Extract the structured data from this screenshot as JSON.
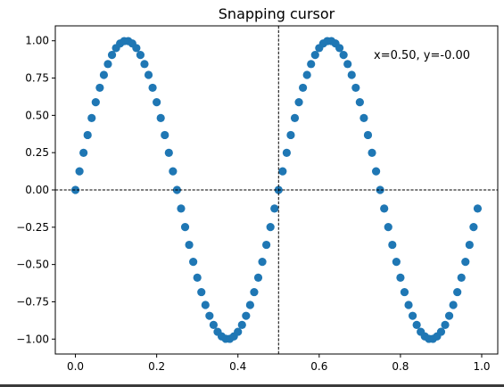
{
  "chart_data": {
    "type": "scatter",
    "title": "Snapping cursor",
    "xlabel": "",
    "ylabel": "",
    "xlim": [
      -0.0495,
      1.0395
    ],
    "ylim": [
      -1.1,
      1.1
    ],
    "xticks": [
      0.0,
      0.2,
      0.4,
      0.6,
      0.8,
      1.0
    ],
    "xtick_labels": [
      "0.0",
      "0.2",
      "0.4",
      "0.6",
      "0.8",
      "1.0"
    ],
    "yticks": [
      1.0,
      0.75,
      0.5,
      0.25,
      0.0,
      -0.25,
      -0.5,
      -0.75,
      -1.0
    ],
    "ytick_labels": [
      "1.00",
      "0.75",
      "0.50",
      "0.25",
      "0.00",
      "−0.25",
      "−0.50",
      "−0.75",
      "−1.00"
    ],
    "grid": false,
    "marker_color": "#1f77b4",
    "series": [
      {
        "marker": "circle",
        "x": [
          0.0,
          0.01,
          0.02,
          0.03,
          0.04,
          0.05,
          0.06,
          0.07,
          0.08,
          0.09,
          0.1,
          0.11,
          0.12,
          0.13,
          0.14,
          0.15,
          0.16,
          0.17,
          0.18,
          0.19,
          0.2,
          0.21,
          0.22,
          0.23,
          0.24,
          0.25,
          0.26,
          0.27,
          0.28,
          0.29,
          0.3,
          0.31,
          0.32,
          0.33,
          0.34,
          0.35,
          0.36,
          0.37,
          0.38,
          0.39,
          0.4,
          0.41,
          0.42,
          0.43,
          0.44,
          0.45,
          0.46,
          0.47,
          0.48,
          0.49,
          0.5,
          0.51,
          0.52,
          0.53,
          0.54,
          0.55,
          0.56,
          0.57,
          0.58,
          0.59,
          0.6,
          0.61,
          0.62,
          0.63,
          0.64,
          0.65,
          0.66,
          0.67,
          0.68,
          0.69,
          0.7,
          0.71,
          0.72,
          0.73,
          0.74,
          0.75,
          0.76,
          0.77,
          0.78,
          0.79,
          0.8,
          0.81,
          0.82,
          0.83,
          0.84,
          0.85,
          0.86,
          0.87,
          0.88,
          0.89,
          0.9,
          0.91,
          0.92,
          0.93,
          0.94,
          0.95,
          0.96,
          0.97,
          0.98,
          0.99
        ],
        "y": [
          0.0,
          0.125,
          0.249,
          0.368,
          0.482,
          0.588,
          0.685,
          0.771,
          0.844,
          0.905,
          0.951,
          0.982,
          0.998,
          0.998,
          0.982,
          0.951,
          0.905,
          0.844,
          0.771,
          0.685,
          0.588,
          0.482,
          0.368,
          0.249,
          0.125,
          0.0,
          -0.125,
          -0.249,
          -0.368,
          -0.482,
          -0.588,
          -0.685,
          -0.771,
          -0.844,
          -0.905,
          -0.951,
          -0.982,
          -0.998,
          -0.998,
          -0.982,
          -0.951,
          -0.905,
          -0.844,
          -0.771,
          -0.685,
          -0.588,
          -0.482,
          -0.368,
          -0.249,
          -0.125,
          0.0,
          0.125,
          0.249,
          0.368,
          0.482,
          0.588,
          0.685,
          0.771,
          0.844,
          0.905,
          0.951,
          0.982,
          0.998,
          0.998,
          0.982,
          0.951,
          0.905,
          0.844,
          0.771,
          0.685,
          0.588,
          0.482,
          0.368,
          0.249,
          0.125,
          0.0,
          -0.125,
          -0.249,
          -0.368,
          -0.482,
          -0.588,
          -0.685,
          -0.771,
          -0.844,
          -0.905,
          -0.951,
          -0.982,
          -0.998,
          -0.998,
          -0.982,
          -0.951,
          -0.905,
          -0.844,
          -0.771,
          -0.685,
          -0.588,
          -0.482,
          -0.368,
          -0.249,
          -0.125
        ]
      }
    ],
    "cursor": {
      "x": 0.5,
      "y": 0.0,
      "line_style": "dashed",
      "line_color": "#000000"
    },
    "readout_text": "x=0.50, y=-0.00"
  }
}
